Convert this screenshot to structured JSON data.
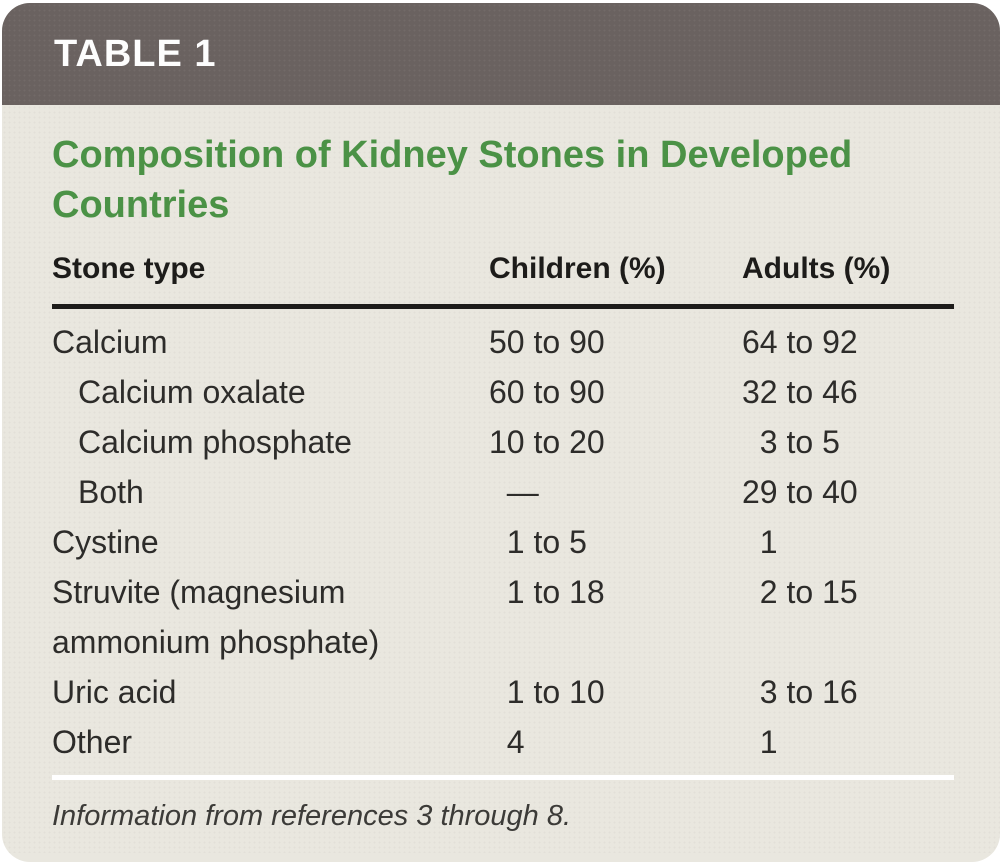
{
  "header": {
    "label": "TABLE 1"
  },
  "title": "Composition of Kidney Stones in Developed Countries",
  "table": {
    "columns": [
      "Stone type",
      "Children (%)",
      "Adults (%)"
    ],
    "rows": [
      {
        "label": "Calcium",
        "children": "50 to 90",
        "adults": "64 to 92"
      },
      {
        "label": "Calcium oxalate",
        "children": "60 to 90",
        "adults": "32 to 46"
      },
      {
        "label": "Calcium phosphate",
        "children": "10 to 20",
        "adults": " 3 to 5"
      },
      {
        "label": "Both",
        "children": " —",
        "adults": "29 to 40"
      },
      {
        "label": "Cystine",
        "children": " 1 to 5",
        "adults": " 1"
      },
      {
        "label": "Struvite (magnesium\nammonium phosphate)",
        "children": " 1 to 18",
        "adults": " 2 to 15"
      },
      {
        "label": "Uric acid",
        "children": " 1 to 10",
        "adults": " 3 to 16"
      },
      {
        "label": "Other",
        "children": " 4",
        "adults": " 1"
      }
    ]
  },
  "footnote": "Information from references 3 through 8.",
  "colors": {
    "header_bar": "#6a6260",
    "body_bg": "#e9e7df",
    "title_green": "#4b9246",
    "text": "#2d2c2a",
    "rule_black": "#1d1c1a",
    "rule_white": "#ffffff"
  }
}
